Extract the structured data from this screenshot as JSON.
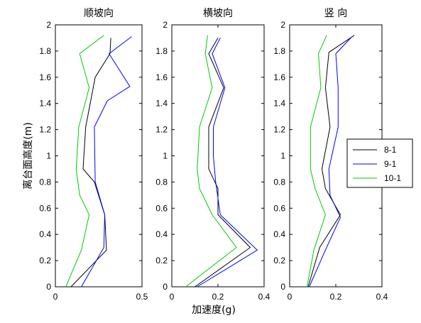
{
  "chart_data": {
    "type": "line",
    "ylabel": "离台面高度(m)",
    "xlabel": "加速度(g)",
    "ylim": [
      0,
      2
    ],
    "yticks": [
      "0",
      "0.2",
      "0.4",
      "0.6",
      "0.8",
      "1",
      "1.2",
      "1.4",
      "1.6",
      "1.8",
      "2"
    ],
    "legend": {
      "position": "right-middle",
      "entries": [
        {
          "name": "8-1",
          "color": "#000000"
        },
        {
          "name": "9-1",
          "color": "#0000ff"
        },
        {
          "name": "10-1",
          "color": "#00cc00"
        }
      ]
    },
    "panels": [
      {
        "title": "顺坡向",
        "xlim": [
          0,
          0.5
        ],
        "xticks": [
          "0",
          "0.5"
        ],
        "series": [
          {
            "name": "8-1",
            "color": "#000000",
            "points": [
              [
                0.09,
                0
              ],
              [
                0.295,
                0.28
              ],
              [
                0.285,
                0.55
              ],
              [
                0.225,
                0.8
              ],
              [
                0.16,
                0.9
              ],
              [
                0.175,
                1.22
              ],
              [
                0.23,
                1.6
              ],
              [
                0.315,
                1.78
              ],
              [
                0.32,
                1.9
              ]
            ]
          },
          {
            "name": "9-1",
            "color": "#0000ff",
            "points": [
              [
                0.15,
                0
              ],
              [
                0.28,
                0.3
              ],
              [
                0.285,
                0.55
              ],
              [
                0.23,
                0.8
              ],
              [
                0.225,
                1.22
              ],
              [
                0.3,
                1.42
              ],
              [
                0.43,
                1.53
              ],
              [
                0.31,
                1.78
              ],
              [
                0.44,
                1.91
              ]
            ]
          },
          {
            "name": "10-1",
            "color": "#00cc00",
            "points": [
              [
                0.06,
                0
              ],
              [
                0.15,
                0.28
              ],
              [
                0.195,
                0.55
              ],
              [
                0.14,
                0.7
              ],
              [
                0.12,
                0.9
              ],
              [
                0.135,
                1.22
              ],
              [
                0.195,
                1.52
              ],
              [
                0.14,
                1.78
              ],
              [
                0.28,
                1.92
              ]
            ]
          }
        ]
      },
      {
        "title": "横坡向",
        "xlim": [
          0,
          0.4
        ],
        "xticks": [
          "0",
          "0.2",
          "0.4"
        ],
        "series": [
          {
            "name": "8-1",
            "color": "#000000",
            "points": [
              [
                0.1,
                0
              ],
              [
                0.34,
                0.3
              ],
              [
                0.2,
                0.55
              ],
              [
                0.2,
                0.75
              ],
              [
                0.16,
                0.9
              ],
              [
                0.16,
                1.22
              ],
              [
                0.225,
                1.52
              ],
              [
                0.16,
                1.78
              ],
              [
                0.2,
                1.9
              ]
            ]
          },
          {
            "name": "9-1",
            "color": "#0000ff",
            "points": [
              [
                0.11,
                0
              ],
              [
                0.37,
                0.28
              ],
              [
                0.21,
                0.55
              ],
              [
                0.19,
                0.8
              ],
              [
                0.18,
                1.0
              ],
              [
                0.18,
                1.22
              ],
              [
                0.23,
                1.52
              ],
              [
                0.175,
                1.78
              ],
              [
                0.21,
                1.9
              ]
            ]
          },
          {
            "name": "10-1",
            "color": "#00cc00",
            "points": [
              [
                0.06,
                0
              ],
              [
                0.28,
                0.3
              ],
              [
                0.175,
                0.55
              ],
              [
                0.12,
                0.75
              ],
              [
                0.11,
                0.9
              ],
              [
                0.12,
                1.22
              ],
              [
                0.175,
                1.52
              ],
              [
                0.145,
                1.78
              ],
              [
                0.155,
                1.92
              ]
            ]
          }
        ]
      },
      {
        "title": "竖  向",
        "xlim": [
          0,
          0.4
        ],
        "xticks": [
          "0",
          "0.2",
          "0.4"
        ],
        "series": [
          {
            "name": "8-1",
            "color": "#000000",
            "points": [
              [
                0.08,
                0
              ],
              [
                0.13,
                0.3
              ],
              [
                0.22,
                0.55
              ],
              [
                0.155,
                0.75
              ],
              [
                0.14,
                0.9
              ],
              [
                0.175,
                1.22
              ],
              [
                0.155,
                1.52
              ],
              [
                0.17,
                1.79
              ],
              [
                0.28,
                1.92
              ]
            ]
          },
          {
            "name": "9-1",
            "color": "#0000ff",
            "points": [
              [
                0.085,
                0
              ],
              [
                0.16,
                0.3
              ],
              [
                0.22,
                0.53
              ],
              [
                0.175,
                0.7
              ],
              [
                0.17,
                0.9
              ],
              [
                0.21,
                1.22
              ],
              [
                0.21,
                1.52
              ],
              [
                0.2,
                1.78
              ],
              [
                0.27,
                1.91
              ]
            ]
          },
          {
            "name": "10-1",
            "color": "#00cc00",
            "points": [
              [
                0.075,
                0
              ],
              [
                0.105,
                0.28
              ],
              [
                0.155,
                0.55
              ],
              [
                0.11,
                0.75
              ],
              [
                0.09,
                0.9
              ],
              [
                0.09,
                1.22
              ],
              [
                0.135,
                1.52
              ],
              [
                0.125,
                1.78
              ],
              [
                0.16,
                1.92
              ]
            ]
          }
        ]
      }
    ]
  }
}
